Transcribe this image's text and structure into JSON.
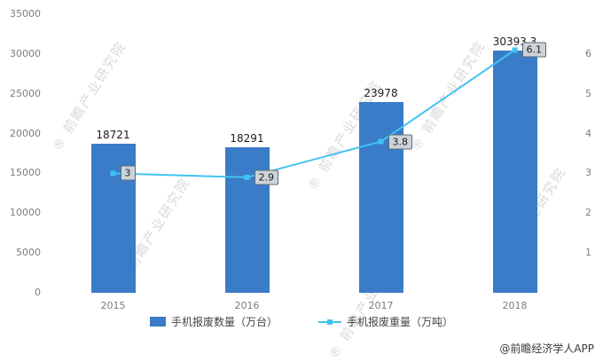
{
  "chart_data": {
    "type": "bar",
    "subtype": "bar-line-combo",
    "categories": [
      "2015",
      "2016",
      "2017",
      "2018"
    ],
    "series": [
      {
        "name": "手机报废数量（万台）",
        "type": "bar",
        "axis": "left",
        "values": [
          18721,
          18291,
          23978,
          30393.3
        ],
        "labels": [
          "18721",
          "18291",
          "23978",
          "30393.3"
        ],
        "color": "#3a7cc8"
      },
      {
        "name": "手机报废重量（万吨）",
        "type": "line",
        "axis": "right",
        "values": [
          3,
          2.9,
          3.8,
          6.1
        ],
        "labels": [
          "3",
          "2.9",
          "3.8",
          "6.1"
        ],
        "color": "#41c3f2"
      }
    ],
    "left_axis": {
      "min": 0,
      "max": 35000,
      "ticks": [
        "0",
        "5000",
        "10000",
        "15000",
        "20000",
        "25000",
        "30000",
        "35000"
      ]
    },
    "right_axis": {
      "min": 0,
      "max": 7,
      "ticks": [
        "1",
        "2",
        "3",
        "4",
        "5",
        "6"
      ]
    },
    "grid": false,
    "legend_position": "bottom",
    "title": ""
  },
  "watermark_symbol": "®",
  "watermark_text": "前瞻产业研究院",
  "credit": "@前瞻经济学人APP"
}
